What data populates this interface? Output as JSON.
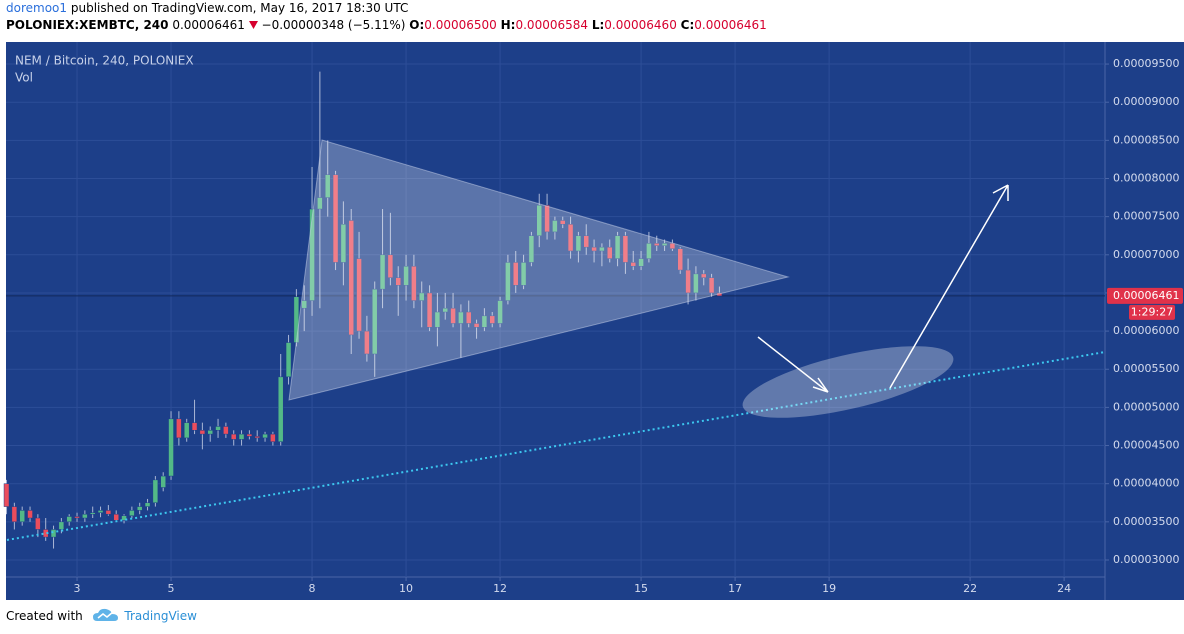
{
  "header": {
    "author": "doremoo1",
    "published": "published on TradingView.com, May 16, 2017 18:30 UTC",
    "symbol": "POLONIEX:XEMBTC, 240",
    "last": "0.00006461",
    "change": "−0.00000348 (−5.11%)",
    "open_key": "O:",
    "open": "0.00006500",
    "high_key": "H:",
    "high": "0.00006584",
    "low_key": "L:",
    "low": "0.00006460",
    "close_key": "C:",
    "close": "0.00006461"
  },
  "chart_data": {
    "type": "candlestick",
    "title": "NEM / Bitcoin, 240, POLONIEX",
    "volume_label": "Vol",
    "x": [
      1.5,
      1.6667,
      1.8333,
      2,
      2.1667,
      2.3333,
      2.5,
      2.6667,
      2.8333,
      3,
      3.1667,
      3.3333,
      3.5,
      3.6667,
      3.8333,
      4,
      4.1667,
      4.3333,
      4.5,
      4.6667,
      4.8333,
      5,
      5.1667,
      5.3333,
      5.5,
      5.6667,
      5.8333,
      6,
      6.1667,
      6.3333,
      6.5,
      6.6667,
      6.8333,
      7,
      7.1667,
      7.3333,
      7.5,
      7.6667,
      7.8333,
      8,
      8.1667,
      8.3333,
      8.5,
      8.6667,
      8.8333,
      9,
      9.1667,
      9.3333,
      9.5,
      9.6667,
      9.8333,
      10,
      10.1667,
      10.3333,
      10.5,
      10.6667,
      10.8333,
      11,
      11.1667,
      11.3333,
      11.5,
      11.6667,
      11.8333,
      12,
      12.1667,
      12.3333,
      12.5,
      12.6667,
      12.8333,
      13,
      13.1667,
      13.3333,
      13.5,
      13.6667,
      13.8333,
      14,
      14.1667,
      14.3333,
      14.5,
      14.6667,
      14.8333,
      15,
      15.1667,
      15.3333,
      15.5,
      15.6667,
      15.8333,
      16,
      16.1667,
      16.3333,
      16.5,
      16.6667
    ],
    "open": [
      4e-05,
      3.7e-05,
      3.5e-05,
      3.65e-05,
      3.55e-05,
      3.4e-05,
      3.3e-05,
      3.4e-05,
      3.5e-05,
      3.57e-05,
      3.55e-05,
      3.6e-05,
      3.62e-05,
      3.65e-05,
      3.6e-05,
      3.52e-05,
      3.58e-05,
      3.65e-05,
      3.7e-05,
      3.75e-05,
      3.95e-05,
      4.1e-05,
      4.85e-05,
      4.6e-05,
      4.8e-05,
      4.7e-05,
      4.65e-05,
      4.7e-05,
      4.75e-05,
      4.65e-05,
      4.58e-05,
      4.65e-05,
      4.62e-05,
      4.6e-05,
      4.65e-05,
      4.55e-05,
      5.4e-05,
      5.85e-05,
      6.3e-05,
      6.4e-05,
      7.6e-05,
      7.75e-05,
      8.05e-05,
      6.9e-05,
      7.45e-05,
      6.95e-05,
      6e-05,
      5.7e-05,
      6.55e-05,
      7e-05,
      6.7e-05,
      6.6e-05,
      6.85e-05,
      6.4e-05,
      6.5e-05,
      6.05e-05,
      6.25e-05,
      6.3e-05,
      6.1e-05,
      6.25e-05,
      6.1e-05,
      6.05e-05,
      6.2e-05,
      6.1e-05,
      6.4e-05,
      6.9e-05,
      6.6e-05,
      6.9e-05,
      7.25e-05,
      7.65e-05,
      7.3e-05,
      7.45e-05,
      7.4e-05,
      7.05e-05,
      7.25e-05,
      7.1e-05,
      7.05e-05,
      7.1e-05,
      6.95e-05,
      7.25e-05,
      6.9e-05,
      6.85e-05,
      6.95e-05,
      7.15e-05,
      7.12e-05,
      7.15e-05,
      7.08e-05,
      6.8e-05,
      6.5e-05,
      6.75e-05,
      6.7e-05,
      6.5e-05
    ],
    "high": [
      4.05e-05,
      3.75e-05,
      3.7e-05,
      3.7e-05,
      3.6e-05,
      3.55e-05,
      3.45e-05,
      3.55e-05,
      3.6e-05,
      3.62e-05,
      3.65e-05,
      3.7e-05,
      3.7e-05,
      3.72e-05,
      3.65e-05,
      3.6e-05,
      3.7e-05,
      3.75e-05,
      3.8e-05,
      4.1e-05,
      4.15e-05,
      4.95e-05,
      4.95e-05,
      4.85e-05,
      5.1e-05,
      4.8e-05,
      4.75e-05,
      4.85e-05,
      4.8e-05,
      4.7e-05,
      4.7e-05,
      4.7e-05,
      4.7e-05,
      4.68e-05,
      4.68e-05,
      5.7e-05,
      5.95e-05,
      6.55e-05,
      6.6e-05,
      8.15e-05,
      9.4e-05,
      8.5e-05,
      8.1e-05,
      7.7e-05,
      7.6e-05,
      7.3e-05,
      6.2e-05,
      6.65e-05,
      7.6e-05,
      7.55e-05,
      6.85e-05,
      7e-05,
      7e-05,
      6.65e-05,
      6.6e-05,
      6.5e-05,
      6.5e-05,
      6.5e-05,
      6.35e-05,
      6.4e-05,
      6.15e-05,
      6.3e-05,
      6.25e-05,
      6.45e-05,
      7e-05,
      7.05e-05,
      7e-05,
      7.3e-05,
      7.8e-05,
      7.8e-05,
      7.5e-05,
      7.5e-05,
      7.5e-05,
      7.3e-05,
      7.4e-05,
      7.2e-05,
      7.15e-05,
      7.2e-05,
      7.3e-05,
      7.3e-05,
      7.05e-05,
      7.05e-05,
      7.3e-05,
      7.25e-05,
      7.2e-05,
      7.2e-05,
      7.1e-05,
      6.95e-05,
      6.85e-05,
      6.8e-05,
      6.75e-05,
      6.584e-05
    ],
    "low": [
      3.6e-05,
      3.4e-05,
      3.45e-05,
      3.5e-05,
      3.3e-05,
      3.25e-05,
      3.15e-05,
      3.35e-05,
      3.45e-05,
      3.5e-05,
      3.5e-05,
      3.55e-05,
      3.56e-05,
      3.58e-05,
      3.5e-05,
      3.48e-05,
      3.55e-05,
      3.6e-05,
      3.65e-05,
      3.7e-05,
      3.9e-05,
      4.05e-05,
      4.5e-05,
      4.55e-05,
      4.65e-05,
      4.45e-05,
      4.55e-05,
      4.6e-05,
      4.6e-05,
      4.5e-05,
      4.5e-05,
      4.58e-05,
      4.55e-05,
      4.55e-05,
      4.5e-05,
      4.5e-05,
      5.3e-05,
      5.8e-05,
      6e-05,
      6.2e-05,
      6.3e-05,
      7.5e-05,
      6.8e-05,
      6.6e-05,
      5.7e-05,
      5.9e-05,
      5.6e-05,
      5.4e-05,
      6.3e-05,
      6.6e-05,
      6.2e-05,
      6.4e-05,
      6.3e-05,
      6.05e-05,
      6e-05,
      5.8e-05,
      6.15e-05,
      6.05e-05,
      5.65e-05,
      6.05e-05,
      5.9e-05,
      6e-05,
      6.05e-05,
      6.05e-05,
      6.35e-05,
      6.5e-05,
      6.55e-05,
      6.85e-05,
      7.1e-05,
      7.2e-05,
      7.2e-05,
      7.35e-05,
      6.95e-05,
      6.9e-05,
      7e-05,
      6.9e-05,
      6.85e-05,
      6.9e-05,
      6.85e-05,
      6.75e-05,
      6.8e-05,
      6.8e-05,
      6.9e-05,
      7.05e-05,
      7.05e-05,
      7.05e-05,
      6.75e-05,
      6.35e-05,
      6.4e-05,
      6.6e-05,
      6.45e-05,
      6.46e-05
    ],
    "close": [
      3.7e-05,
      3.5e-05,
      3.65e-05,
      3.55e-05,
      3.4e-05,
      3.3e-05,
      3.4e-05,
      3.5e-05,
      3.57e-05,
      3.55e-05,
      3.6e-05,
      3.62e-05,
      3.65e-05,
      3.6e-05,
      3.52e-05,
      3.58e-05,
      3.65e-05,
      3.7e-05,
      3.75e-05,
      4.05e-05,
      4.1e-05,
      4.85e-05,
      4.6e-05,
      4.8e-05,
      4.7e-05,
      4.65e-05,
      4.7e-05,
      4.75e-05,
      4.65e-05,
      4.58e-05,
      4.65e-05,
      4.62e-05,
      4.6e-05,
      4.65e-05,
      4.55e-05,
      5.4e-05,
      5.85e-05,
      6.45e-05,
      6.4e-05,
      7.6e-05,
      7.75e-05,
      8.05e-05,
      6.9e-05,
      7.4e-05,
      5.95e-05,
      6e-05,
      5.7e-05,
      6.55e-05,
      7e-05,
      6.7e-05,
      6.6e-05,
      6.85e-05,
      6.4e-05,
      6.5e-05,
      6.05e-05,
      6.25e-05,
      6.3e-05,
      6.1e-05,
      6.25e-05,
      6.1e-05,
      6.05e-05,
      6.2e-05,
      6.1e-05,
      6.4e-05,
      6.9e-05,
      6.6e-05,
      6.9e-05,
      7.25e-05,
      7.65e-05,
      7.3e-05,
      7.45e-05,
      7.4e-05,
      7.05e-05,
      7.25e-05,
      7.1e-05,
      7.05e-05,
      7.1e-05,
      6.95e-05,
      7.25e-05,
      6.9e-05,
      6.85e-05,
      6.95e-05,
      7.15e-05,
      7.12e-05,
      7.15e-05,
      7.08e-05,
      6.8e-05,
      6.5e-05,
      6.75e-05,
      6.7e-05,
      6.5e-05,
      6.461e-05
    ],
    "up_color": "#53b987",
    "down_color": "#eb4d5c",
    "xlim": [
      1.51,
      24.87
    ],
    "xticks": [
      3,
      5,
      8,
      10,
      12,
      15,
      17,
      19,
      22,
      24
    ],
    "ylim": [
      2.777e-05,
      9.789e-05
    ],
    "yticks": [
      {
        "value": 3e-05,
        "label": "0.00003000"
      },
      {
        "value": 3.5e-05,
        "label": "0.00003500"
      },
      {
        "value": 4e-05,
        "label": "0.00004000"
      },
      {
        "value": 4.5e-05,
        "label": "0.00004500"
      },
      {
        "value": 5e-05,
        "label": "0.00005000"
      },
      {
        "value": 5.5e-05,
        "label": "0.00005500"
      },
      {
        "value": 6e-05,
        "label": "0.00006000"
      },
      {
        "value": 6.5e-05,
        "label": "0.00006500"
      },
      {
        "value": 7e-05,
        "label": "0.00007000"
      },
      {
        "value": 7.5e-05,
        "label": "0.00007500"
      },
      {
        "value": 8e-05,
        "label": "0.00008000"
      },
      {
        "value": 8.5e-05,
        "label": "0.00008500"
      },
      {
        "value": 9e-05,
        "label": "0.00009000"
      },
      {
        "value": 9.5e-05,
        "label": "0.00009500"
      }
    ],
    "grid": true,
    "last_price": {
      "value": 6.461e-05,
      "label": "0.00006461"
    },
    "countdown": "1:29:27"
  },
  "footer": {
    "created": "Created with",
    "brand": "TradingView"
  }
}
